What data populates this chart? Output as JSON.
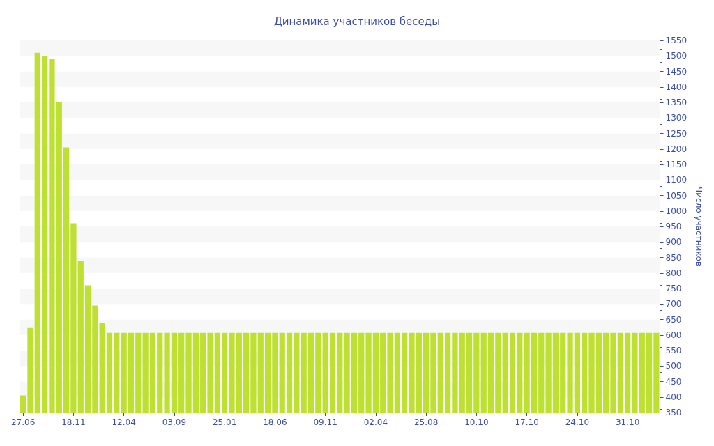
{
  "chart_data": {
    "type": "bar",
    "title": "Динамика участников беседы",
    "ylabel": "Число участников",
    "categories": [
      "27.06",
      null,
      null,
      null,
      null,
      null,
      null,
      "18.11",
      null,
      null,
      null,
      null,
      null,
      null,
      "12.04",
      null,
      null,
      null,
      null,
      null,
      null,
      "03.09",
      null,
      null,
      null,
      null,
      null,
      null,
      "25.01",
      null,
      null,
      null,
      null,
      null,
      null,
      "18.06",
      null,
      null,
      null,
      null,
      null,
      null,
      "09.11",
      null,
      null,
      null,
      null,
      null,
      null,
      "02.04",
      null,
      null,
      null,
      null,
      null,
      null,
      "25.08",
      null,
      null,
      null,
      null,
      null,
      null,
      "10.10",
      null,
      null,
      null,
      null,
      null,
      null,
      "17.10",
      null,
      null,
      null,
      null,
      null,
      null,
      "24.10",
      null,
      null,
      null,
      null,
      null,
      null,
      "31.10",
      null,
      null,
      null,
      null
    ],
    "values": [
      405,
      625,
      1510,
      1500,
      1490,
      1350,
      1205,
      960,
      838,
      760,
      695,
      640,
      607,
      607,
      607,
      607,
      607,
      607,
      607,
      607,
      607,
      607,
      607,
      607,
      607,
      607,
      607,
      607,
      607,
      607,
      607,
      607,
      607,
      607,
      607,
      607,
      607,
      607,
      607,
      607,
      607,
      607,
      607,
      607,
      607,
      607,
      607,
      607,
      607,
      607,
      607,
      607,
      607,
      607,
      607,
      607,
      607,
      607,
      607,
      607,
      607,
      607,
      607,
      607,
      607,
      607,
      607,
      607,
      607,
      607,
      607,
      607,
      607,
      607,
      607,
      607,
      607,
      607,
      607,
      607,
      607,
      607,
      607,
      607,
      607,
      607,
      607,
      607,
      607
    ],
    "color": "#bde031",
    "ylim": [
      350,
      1550
    ],
    "yticks": [
      350,
      400,
      450,
      500,
      550,
      600,
      650,
      700,
      750,
      800,
      850,
      900,
      950,
      1000,
      1050,
      1100,
      1150,
      1200,
      1250,
      1300,
      1350,
      1400,
      1450,
      1500,
      1550
    ]
  }
}
